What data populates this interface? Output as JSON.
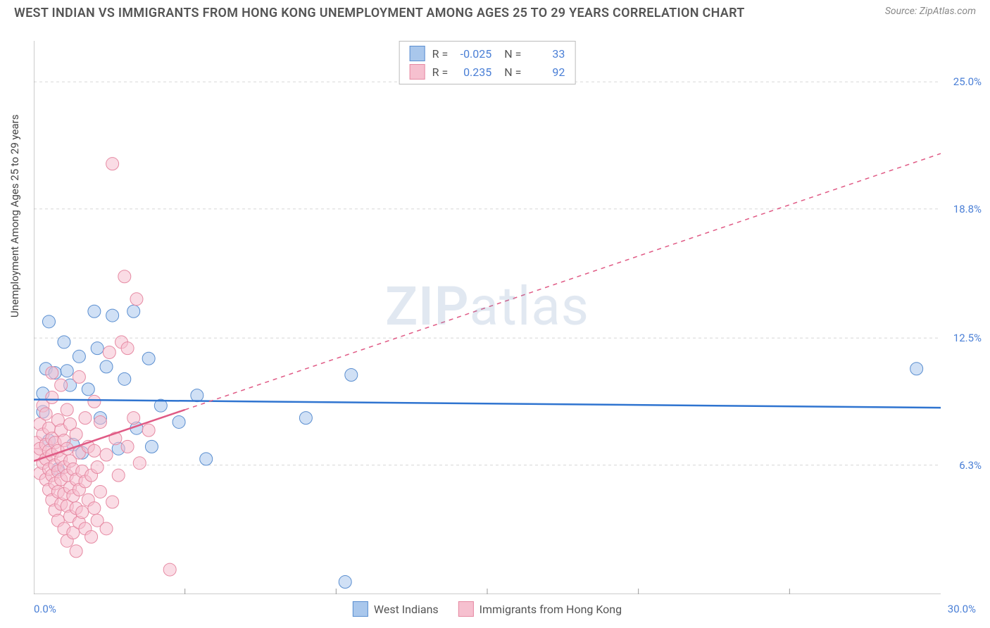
{
  "header": {
    "title": "WEST INDIAN VS IMMIGRANTS FROM HONG KONG UNEMPLOYMENT AMONG AGES 25 TO 29 YEARS CORRELATION CHART",
    "source": "Source: ZipAtlas.com"
  },
  "chart": {
    "type": "scatter",
    "ylabel": "Unemployment Among Ages 25 to 29 years",
    "xlim": [
      0.0,
      30.0
    ],
    "ylim": [
      0.0,
      27.0
    ],
    "xlim_labels": {
      "min": "0.0%",
      "max": "30.0%"
    },
    "ytick_values": [
      6.3,
      12.5,
      18.8,
      25.0
    ],
    "ytick_labels": [
      "6.3%",
      "12.5%",
      "18.8%",
      "25.0%"
    ],
    "xtick_minor": [
      5,
      10,
      15,
      20,
      25
    ],
    "grid_color": "#d8d8d8",
    "axis_color": "#999999",
    "background": "#ffffff",
    "watermark": "ZIPatlas",
    "marker_radius": 9,
    "marker_opacity": 0.55,
    "line_width": 2.5,
    "series": [
      {
        "name": "West Indians",
        "label": "West Indians",
        "color_fill": "#a9c7ec",
        "color_stroke": "#5a8ed0",
        "color_line": "#2f74d0",
        "R": "-0.025",
        "N": "33",
        "trend": {
          "x1": 0.0,
          "y1": 9.5,
          "x2": 30.0,
          "y2": 9.1,
          "dashed": false,
          "extend_dashed": false
        },
        "points": [
          [
            0.3,
            8.9
          ],
          [
            0.3,
            9.8
          ],
          [
            0.4,
            11.0
          ],
          [
            0.5,
            13.3
          ],
          [
            0.5,
            7.5
          ],
          [
            0.7,
            10.8
          ],
          [
            0.8,
            6.1
          ],
          [
            1.0,
            12.3
          ],
          [
            1.1,
            10.9
          ],
          [
            1.2,
            10.2
          ],
          [
            1.3,
            7.3
          ],
          [
            1.5,
            11.6
          ],
          [
            1.6,
            6.9
          ],
          [
            1.8,
            10.0
          ],
          [
            2.0,
            13.8
          ],
          [
            2.1,
            12.0
          ],
          [
            2.2,
            8.6
          ],
          [
            2.4,
            11.1
          ],
          [
            2.6,
            13.6
          ],
          [
            2.8,
            7.1
          ],
          [
            3.0,
            10.5
          ],
          [
            3.3,
            13.8
          ],
          [
            3.4,
            8.1
          ],
          [
            3.8,
            11.5
          ],
          [
            3.9,
            7.2
          ],
          [
            4.2,
            9.2
          ],
          [
            4.8,
            8.4
          ],
          [
            5.4,
            9.7
          ],
          [
            5.7,
            6.6
          ],
          [
            9.0,
            8.6
          ],
          [
            10.3,
            0.6
          ],
          [
            10.5,
            10.7
          ],
          [
            29.2,
            11.0
          ]
        ]
      },
      {
        "name": "Immigrants from Hong Kong",
        "label": "Immigrants from Hong Kong",
        "color_fill": "#f6c0cf",
        "color_stroke": "#e68aa3",
        "color_line": "#e05a85",
        "R": "0.235",
        "N": "92",
        "trend": {
          "x1": 0.0,
          "y1": 6.5,
          "x2": 5,
          "y2": 9.0,
          "dashed": false,
          "extend_dashed": true,
          "ex2": 30.0,
          "ey2": 21.5
        },
        "points": [
          [
            0.1,
            6.8
          ],
          [
            0.1,
            7.4
          ],
          [
            0.2,
            5.9
          ],
          [
            0.2,
            7.1
          ],
          [
            0.2,
            8.3
          ],
          [
            0.3,
            6.4
          ],
          [
            0.3,
            7.8
          ],
          [
            0.3,
            9.2
          ],
          [
            0.4,
            5.6
          ],
          [
            0.4,
            6.6
          ],
          [
            0.4,
            7.3
          ],
          [
            0.4,
            8.8
          ],
          [
            0.5,
            5.1
          ],
          [
            0.5,
            6.1
          ],
          [
            0.5,
            7.0
          ],
          [
            0.5,
            8.1
          ],
          [
            0.6,
            4.6
          ],
          [
            0.6,
            5.8
          ],
          [
            0.6,
            6.8
          ],
          [
            0.6,
            7.6
          ],
          [
            0.6,
            9.6
          ],
          [
            0.6,
            10.8
          ],
          [
            0.7,
            4.1
          ],
          [
            0.7,
            5.4
          ],
          [
            0.7,
            6.3
          ],
          [
            0.7,
            7.4
          ],
          [
            0.8,
            3.6
          ],
          [
            0.8,
            5.0
          ],
          [
            0.8,
            6.0
          ],
          [
            0.8,
            7.0
          ],
          [
            0.8,
            8.5
          ],
          [
            0.9,
            4.4
          ],
          [
            0.9,
            5.6
          ],
          [
            0.9,
            6.6
          ],
          [
            0.9,
            8.0
          ],
          [
            0.9,
            10.2
          ],
          [
            1.0,
            3.2
          ],
          [
            1.0,
            4.9
          ],
          [
            1.0,
            6.2
          ],
          [
            1.0,
            7.5
          ],
          [
            1.1,
            2.6
          ],
          [
            1.1,
            4.3
          ],
          [
            1.1,
            5.8
          ],
          [
            1.1,
            7.1
          ],
          [
            1.1,
            9.0
          ],
          [
            1.2,
            3.8
          ],
          [
            1.2,
            5.2
          ],
          [
            1.2,
            6.5
          ],
          [
            1.2,
            8.3
          ],
          [
            1.3,
            3.0
          ],
          [
            1.3,
            4.8
          ],
          [
            1.3,
            6.1
          ],
          [
            1.4,
            2.1
          ],
          [
            1.4,
            4.2
          ],
          [
            1.4,
            5.6
          ],
          [
            1.4,
            7.8
          ],
          [
            1.5,
            3.5
          ],
          [
            1.5,
            5.1
          ],
          [
            1.5,
            6.9
          ],
          [
            1.5,
            10.6
          ],
          [
            1.6,
            4.0
          ],
          [
            1.6,
            6.0
          ],
          [
            1.7,
            3.2
          ],
          [
            1.7,
            5.5
          ],
          [
            1.7,
            8.6
          ],
          [
            1.8,
            4.6
          ],
          [
            1.8,
            7.2
          ],
          [
            1.9,
            2.8
          ],
          [
            1.9,
            5.8
          ],
          [
            2.0,
            4.2
          ],
          [
            2.0,
            7.0
          ],
          [
            2.0,
            9.4
          ],
          [
            2.1,
            3.6
          ],
          [
            2.1,
            6.2
          ],
          [
            2.2,
            5.0
          ],
          [
            2.2,
            8.4
          ],
          [
            2.4,
            3.2
          ],
          [
            2.4,
            6.8
          ],
          [
            2.5,
            11.8
          ],
          [
            2.6,
            4.5
          ],
          [
            2.7,
            7.6
          ],
          [
            2.8,
            5.8
          ],
          [
            2.9,
            12.3
          ],
          [
            3.0,
            15.5
          ],
          [
            3.1,
            7.2
          ],
          [
            3.1,
            12.0
          ],
          [
            3.3,
            8.6
          ],
          [
            3.4,
            14.4
          ],
          [
            3.5,
            6.4
          ],
          [
            3.8,
            8.0
          ],
          [
            2.6,
            21.0
          ],
          [
            4.5,
            1.2
          ]
        ]
      }
    ],
    "bottom_legend": [
      {
        "label": "West Indians",
        "fill": "#a9c7ec",
        "stroke": "#5a8ed0"
      },
      {
        "label": "Immigrants from Hong Kong",
        "fill": "#f6c0cf",
        "stroke": "#e68aa3"
      }
    ]
  }
}
